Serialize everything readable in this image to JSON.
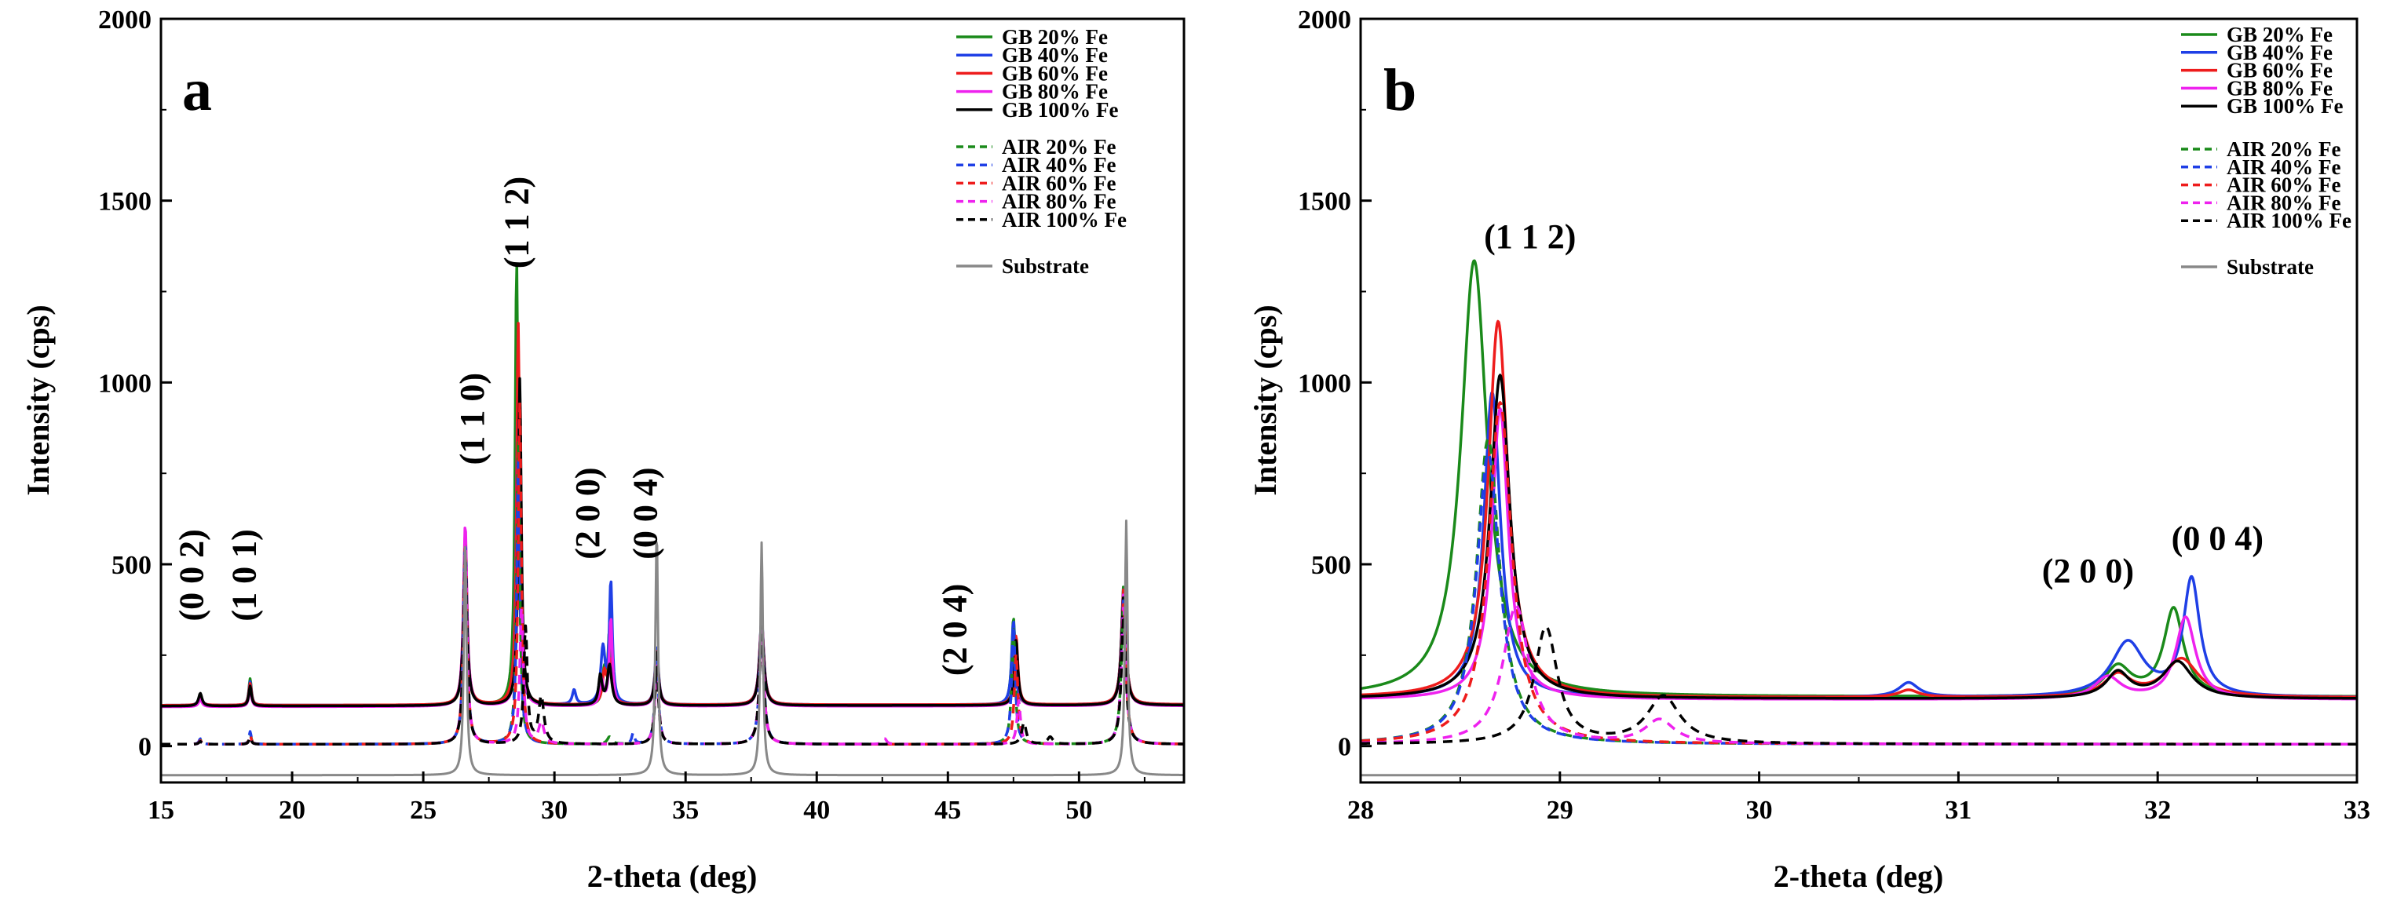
{
  "chart_data": [
    {
      "type": "line",
      "panel": "a",
      "xlabel": "2-theta (deg)",
      "ylabel": "Intensity (cps)",
      "xlim": [
        15,
        54
      ],
      "ylim": [
        -100,
        2000
      ],
      "xticks": [
        15,
        20,
        25,
        30,
        35,
        40,
        45,
        50
      ],
      "yticks": [
        0,
        500,
        1000,
        1500,
        2000
      ],
      "legend": {
        "position": "top-right",
        "entries": [
          {
            "label": "GB 20% Fe",
            "color": "#1a8a1a",
            "dash": "solid"
          },
          {
            "label": "GB 40% Fe",
            "color": "#1f3fe6",
            "dash": "solid"
          },
          {
            "label": "GB 60% Fe",
            "color": "#ee1c1c",
            "dash": "solid"
          },
          {
            "label": "GB 80% Fe",
            "color": "#ee22ee",
            "dash": "solid"
          },
          {
            "label": "GB 100% Fe",
            "color": "#000000",
            "dash": "solid"
          },
          {
            "label": "AIR 20% Fe",
            "color": "#1a8a1a",
            "dash": "dashed"
          },
          {
            "label": "AIR 40% Fe",
            "color": "#1f3fe6",
            "dash": "dashed"
          },
          {
            "label": "AIR 60% Fe",
            "color": "#ee1c1c",
            "dash": "dashed"
          },
          {
            "label": "AIR 80% Fe",
            "color": "#ee22ee",
            "dash": "dashed"
          },
          {
            "label": "AIR 100% Fe",
            "color": "#000000",
            "dash": "dashed"
          },
          {
            "label": "Substrate",
            "color": "#888888",
            "dash": "solid"
          }
        ]
      },
      "annotations": [
        {
          "text": "(0 0 2)",
          "x": 16.6,
          "y": 470
        },
        {
          "text": "(1 0 1)",
          "x": 18.6,
          "y": 470
        },
        {
          "text": "(1 1 0)",
          "x": 27.3,
          "y": 900
        },
        {
          "text": "(1 1 2)",
          "x": 29.0,
          "y": 1440
        },
        {
          "text": "(2 0 0)",
          "x": 31.7,
          "y": 640
        },
        {
          "text": "(0 0 4)",
          "x": 33.9,
          "y": 640
        },
        {
          "text": "(2 0 4)",
          "x": 45.7,
          "y": 320
        }
      ],
      "series": [
        {
          "name": "GB 20% Fe",
          "baseline": 110,
          "slope": 0.6,
          "peaks": [
            [
              16.5,
              30,
              0.08
            ],
            [
              18.4,
              75,
              0.06
            ],
            [
              26.6,
              420,
              0.08
            ],
            [
              28.56,
              1220,
              0.07
            ],
            [
              31.9,
              90,
              0.08
            ],
            [
              32.1,
              200,
              0.07
            ],
            [
              33.9,
              150,
              0.08
            ],
            [
              37.9,
              230,
              0.1
            ],
            [
              47.5,
              240,
              0.08
            ],
            [
              51.7,
              330,
              0.1
            ]
          ]
        },
        {
          "name": "GB 40% Fe",
          "baseline": 112,
          "slope": 0.6,
          "peaks": [
            [
              16.5,
              28,
              0.08
            ],
            [
              18.4,
              65,
              0.06
            ],
            [
              26.6,
              440,
              0.08
            ],
            [
              28.6,
              880,
              0.07
            ],
            [
              30.75,
              40,
              0.08
            ],
            [
              31.85,
              150,
              0.1
            ],
            [
              32.15,
              330,
              0.07
            ],
            [
              33.9,
              160,
              0.08
            ],
            [
              37.9,
              235,
              0.1
            ],
            [
              47.5,
              230,
              0.08
            ],
            [
              51.7,
              320,
              0.1
            ]
          ]
        },
        {
          "name": "GB 60% Fe",
          "baseline": 112,
          "slope": 0.6,
          "peaks": [
            [
              16.5,
              25,
              0.08
            ],
            [
              18.4,
              60,
              0.06
            ],
            [
              26.6,
              470,
              0.08
            ],
            [
              28.62,
              1050,
              0.07
            ],
            [
              31.9,
              80,
              0.08
            ],
            [
              32.12,
              120,
              0.1
            ],
            [
              33.9,
              150,
              0.08
            ],
            [
              37.9,
              230,
              0.1
            ],
            [
              47.6,
              190,
              0.08
            ],
            [
              51.7,
              320,
              0.1
            ]
          ]
        },
        {
          "name": "GB 80% Fe",
          "baseline": 108,
          "slope": 0.6,
          "peaks": [
            [
              16.5,
              20,
              0.08
            ],
            [
              18.4,
              50,
              0.06
            ],
            [
              26.6,
              500,
              0.08
            ],
            [
              28.66,
              800,
              0.07
            ],
            [
              31.8,
              70,
              0.08
            ],
            [
              32.15,
              240,
              0.07
            ],
            [
              33.9,
              150,
              0.08
            ],
            [
              37.9,
              230,
              0.1
            ],
            [
              47.6,
              170,
              0.08
            ],
            [
              51.7,
              310,
              0.1
            ]
          ]
        },
        {
          "name": "GB 100% Fe",
          "baseline": 110,
          "slope": 0.6,
          "peaks": [
            [
              16.5,
              35,
              0.08
            ],
            [
              18.4,
              55,
              0.06
            ],
            [
              26.6,
              440,
              0.08
            ],
            [
              28.68,
              900,
              0.07
            ],
            [
              31.75,
              80,
              0.08
            ],
            [
              32.1,
              110,
              0.1
            ],
            [
              33.9,
              150,
              0.08
            ],
            [
              37.9,
              220,
              0.1
            ],
            [
              47.6,
              180,
              0.08
            ],
            [
              51.7,
              300,
              0.1
            ]
          ]
        },
        {
          "name": "AIR 20% Fe",
          "baseline": 5,
          "slope": 0,
          "peaks": [
            [
              16.5,
              12,
              0.06
            ],
            [
              18.4,
              30,
              0.05
            ],
            [
              26.6,
              540,
              0.08
            ],
            [
              28.62,
              830,
              0.07
            ],
            [
              32.1,
              20,
              0.1
            ],
            [
              33.9,
              230,
              0.08
            ],
            [
              37.9,
              320,
              0.1
            ],
            [
              47.5,
              320,
              0.08
            ],
            [
              51.7,
              400,
              0.1
            ]
          ]
        },
        {
          "name": "AIR 40% Fe",
          "baseline": 5,
          "slope": 0,
          "peaks": [
            [
              16.5,
              15,
              0.06
            ],
            [
              18.4,
              35,
              0.05
            ],
            [
              26.6,
              560,
              0.08
            ],
            [
              28.63,
              800,
              0.07
            ],
            [
              33.0,
              30,
              0.06
            ],
            [
              33.9,
              240,
              0.08
            ],
            [
              37.9,
              320,
              0.1
            ],
            [
              47.5,
              330,
              0.08
            ],
            [
              51.7,
              400,
              0.1
            ]
          ]
        },
        {
          "name": "AIR 60% Fe",
          "baseline": 5,
          "slope": 0,
          "peaks": [
            [
              16.5,
              10,
              0.06
            ],
            [
              18.4,
              25,
              0.05
            ],
            [
              26.6,
              560,
              0.08
            ],
            [
              28.68,
              940,
              0.07
            ],
            [
              33.9,
              230,
              0.08
            ],
            [
              37.9,
              310,
              0.1
            ],
            [
              47.6,
              250,
              0.08
            ],
            [
              51.7,
              390,
              0.1
            ]
          ]
        },
        {
          "name": "AIR 80% Fe",
          "baseline": 5,
          "slope": 0,
          "peaks": [
            [
              16.5,
              8,
              0.06
            ],
            [
              18.4,
              20,
              0.05
            ],
            [
              26.6,
              570,
              0.08
            ],
            [
              28.75,
              380,
              0.08
            ],
            [
              29.5,
              60,
              0.12
            ],
            [
              33.9,
              230,
              0.08
            ],
            [
              37.9,
              310,
              0.1
            ],
            [
              42.6,
              15,
              0.08
            ],
            [
              47.7,
              120,
              0.08
            ],
            [
              51.7,
              380,
              0.1
            ]
          ]
        },
        {
          "name": "AIR 100% Fe",
          "baseline": 5,
          "slope": 0,
          "peaks": [
            [
              16.5,
              8,
              0.06
            ],
            [
              18.4,
              20,
              0.05
            ],
            [
              26.6,
              530,
              0.08
            ],
            [
              28.9,
              320,
              0.08
            ],
            [
              29.5,
              130,
              0.12
            ],
            [
              33.9,
              220,
              0.08
            ],
            [
              37.9,
              300,
              0.1
            ],
            [
              47.9,
              60,
              0.1
            ],
            [
              48.9,
              20,
              0.12
            ],
            [
              51.7,
              360,
              0.1
            ]
          ]
        },
        {
          "name": "Substrate",
          "baseline": -80,
          "slope": 0,
          "peaks": [
            [
              26.6,
              650,
              0.06
            ],
            [
              33.9,
              670,
              0.06
            ],
            [
              37.9,
              640,
              0.06
            ],
            [
              51.8,
              700,
              0.06
            ]
          ]
        }
      ]
    },
    {
      "type": "line",
      "panel": "b",
      "xlabel": "2-theta (deg)",
      "ylabel": "Intensity (cps)",
      "xlim": [
        28,
        33
      ],
      "ylim": [
        -100,
        2000
      ],
      "xticks": [
        28,
        29,
        30,
        31,
        32,
        33
      ],
      "yticks": [
        0,
        500,
        1000,
        1500,
        2000
      ],
      "legend": {
        "position": "top-right",
        "entries": [
          {
            "label": "GB 20% Fe",
            "color": "#1a8a1a",
            "dash": "solid"
          },
          {
            "label": "GB 40% Fe",
            "color": "#1f3fe6",
            "dash": "solid"
          },
          {
            "label": "GB 60% Fe",
            "color": "#ee1c1c",
            "dash": "solid"
          },
          {
            "label": "GB 80% Fe",
            "color": "#ee22ee",
            "dash": "solid"
          },
          {
            "label": "GB 100% Fe",
            "color": "#000000",
            "dash": "solid"
          },
          {
            "label": "AIR 20% Fe",
            "color": "#1a8a1a",
            "dash": "dashed"
          },
          {
            "label": "AIR 40% Fe",
            "color": "#1f3fe6",
            "dash": "dashed"
          },
          {
            "label": "AIR 60% Fe",
            "color": "#ee1c1c",
            "dash": "dashed"
          },
          {
            "label": "AIR 80% Fe",
            "color": "#ee22ee",
            "dash": "dashed"
          },
          {
            "label": "AIR 100% Fe",
            "color": "#000000",
            "dash": "dashed"
          },
          {
            "label": "Substrate",
            "color": "#888888",
            "dash": "solid"
          }
        ]
      },
      "annotations": [
        {
          "text": "(1 1 2)",
          "x": 28.85,
          "y": 1370
        },
        {
          "text": "(2 0 0)",
          "x": 31.65,
          "y": 450
        },
        {
          "text": "(0 0 4)",
          "x": 32.3,
          "y": 540
        }
      ],
      "series": [
        {
          "name": "GB 20% Fe",
          "baseline": 135,
          "slope": 0,
          "peaks": [
            [
              28.57,
              1200,
              0.08
            ],
            [
              31.8,
              80,
              0.08
            ],
            [
              32.08,
              240,
              0.06
            ]
          ]
        },
        {
          "name": "GB 40% Fe",
          "baseline": 133,
          "slope": 0,
          "peaks": [
            [
              28.66,
              840,
              0.05
            ],
            [
              30.75,
              40,
              0.06
            ],
            [
              31.85,
              150,
              0.1
            ],
            [
              32.17,
              320,
              0.05
            ]
          ]
        },
        {
          "name": "GB 60% Fe",
          "baseline": 133,
          "slope": 0,
          "peaks": [
            [
              28.69,
              1035,
              0.06
            ],
            [
              30.75,
              20,
              0.06
            ],
            [
              31.8,
              60,
              0.08
            ],
            [
              32.12,
              105,
              0.1
            ]
          ]
        },
        {
          "name": "GB 80% Fe",
          "baseline": 128,
          "slope": 0,
          "peaks": [
            [
              28.7,
              800,
              0.05
            ],
            [
              31.75,
              60,
              0.08
            ],
            [
              32.14,
              225,
              0.06
            ]
          ]
        },
        {
          "name": "GB 100% Fe",
          "baseline": 130,
          "slope": 0,
          "peaks": [
            [
              28.7,
              890,
              0.06
            ],
            [
              31.8,
              70,
              0.07
            ],
            [
              32.1,
              100,
              0.09
            ]
          ]
        },
        {
          "name": "AIR 20% Fe",
          "baseline": 5,
          "slope": 0,
          "peaks": [
            [
              28.64,
              840,
              0.07
            ]
          ]
        },
        {
          "name": "AIR 40% Fe",
          "baseline": 5,
          "slope": 0,
          "peaks": [
            [
              28.64,
              800,
              0.07
            ]
          ]
        },
        {
          "name": "AIR 60% Fe",
          "baseline": 5,
          "slope": 0,
          "peaks": [
            [
              28.7,
              940,
              0.07
            ]
          ]
        },
        {
          "name": "AIR 80% Fe",
          "baseline": 5,
          "slope": 0,
          "peaks": [
            [
              28.78,
              380,
              0.08
            ],
            [
              29.5,
              65,
              0.09
            ]
          ]
        },
        {
          "name": "AIR 100% Fe",
          "baseline": 5,
          "slope": 0,
          "peaks": [
            [
              28.93,
              320,
              0.07
            ],
            [
              29.52,
              130,
              0.1
            ]
          ]
        },
        {
          "name": "Substrate",
          "baseline": -80,
          "slope": 0,
          "peaks": []
        }
      ]
    }
  ]
}
